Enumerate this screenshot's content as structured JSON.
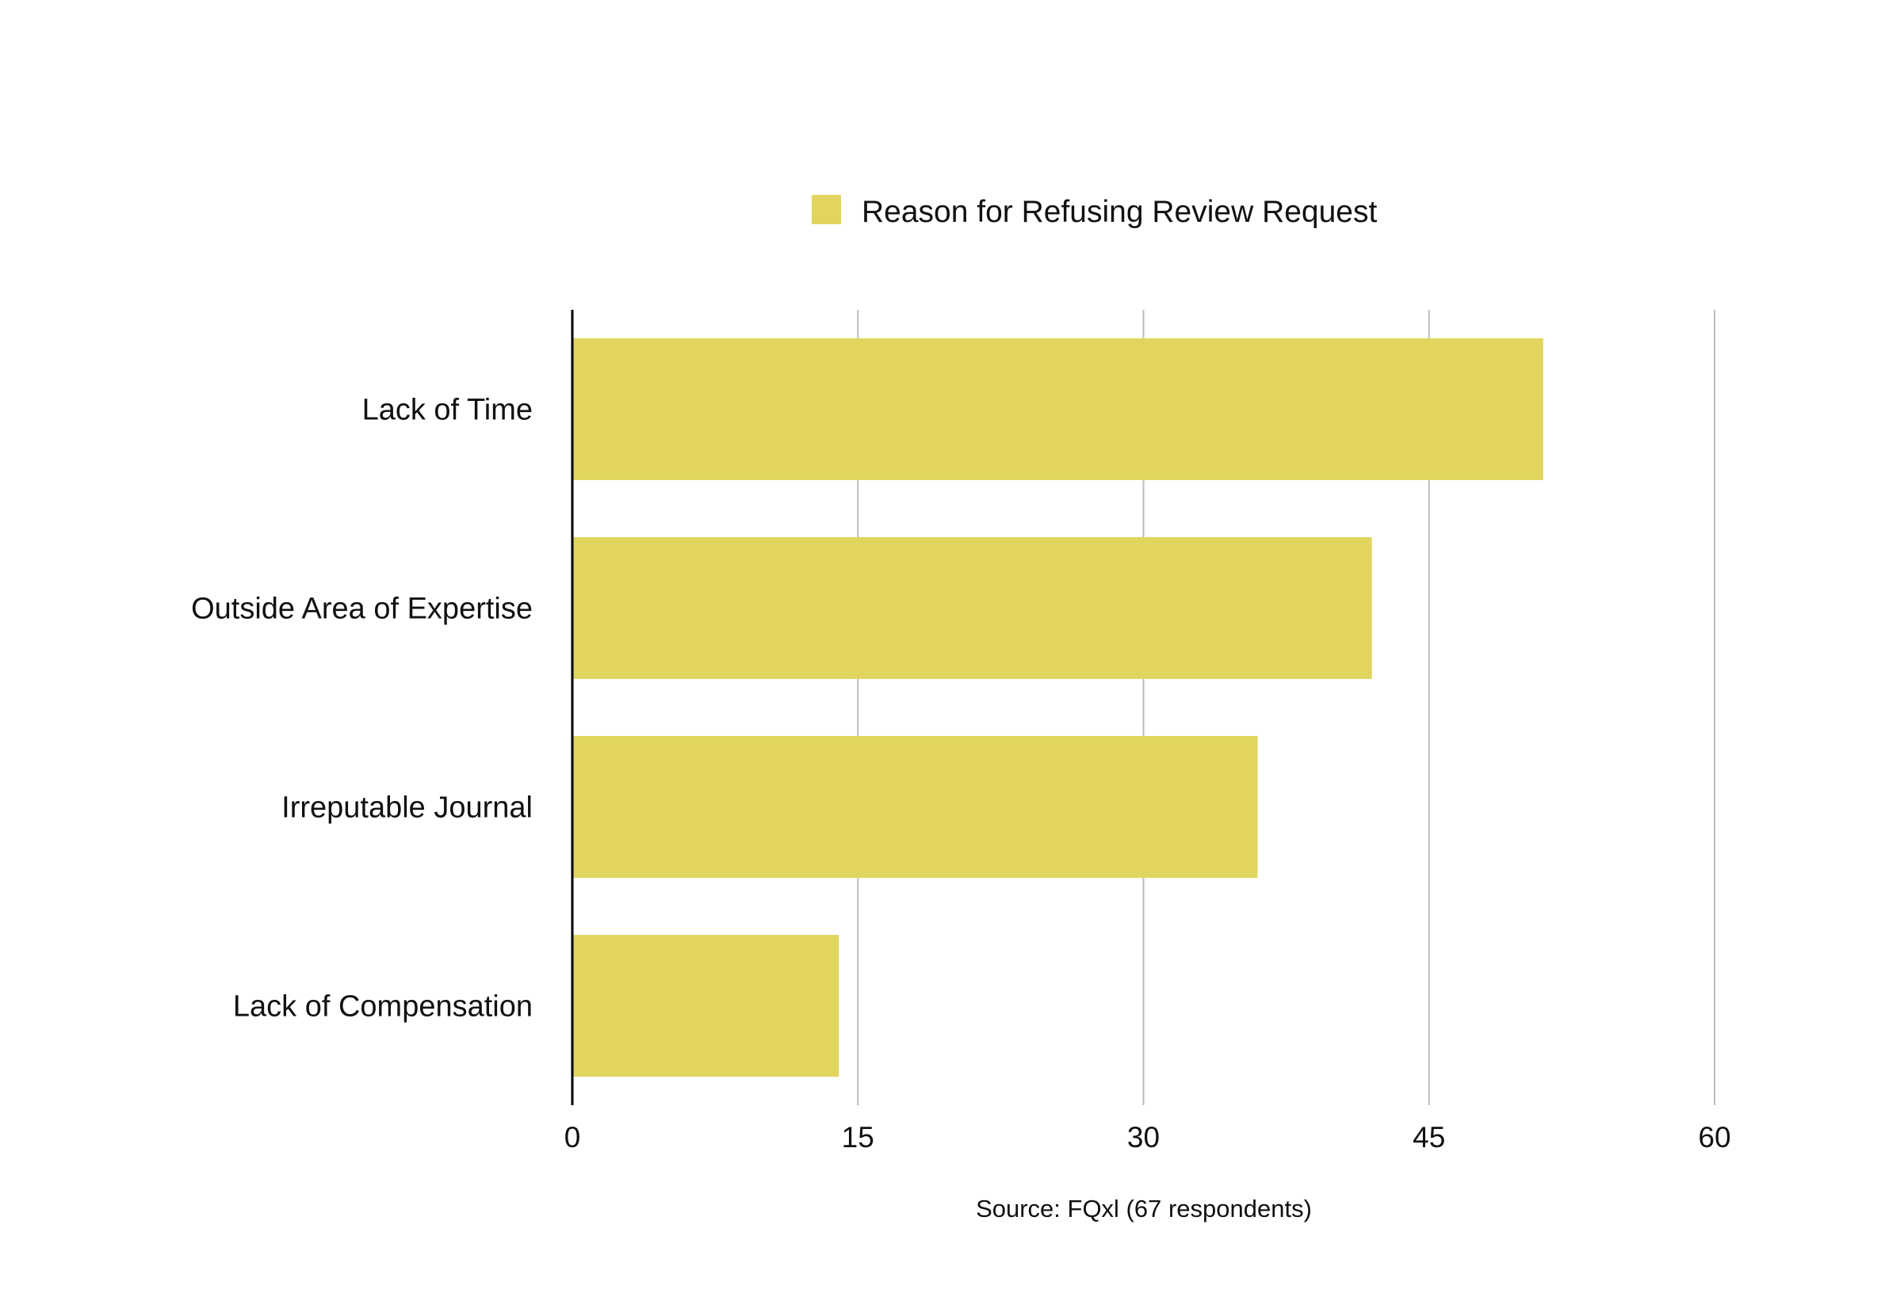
{
  "chart_data": {
    "type": "bar",
    "orientation": "horizontal",
    "categories": [
      "Lack of Time",
      "Outside Area of Expertise",
      "Irreputable Journal",
      "Lack of Compensation"
    ],
    "series": [
      {
        "name": "Reason for Refusing Review Request",
        "values": [
          51,
          42,
          36,
          14
        ],
        "color": "#E1D55F"
      }
    ],
    "xlim": [
      0,
      60
    ],
    "x_ticks": [
      0,
      15,
      30,
      45,
      60
    ],
    "grid": "vertical",
    "legend_position": "top-center",
    "source": "Source: FQxl (67 respondents)",
    "axis_color": "#000000",
    "grid_color": "#bdbdbd"
  }
}
